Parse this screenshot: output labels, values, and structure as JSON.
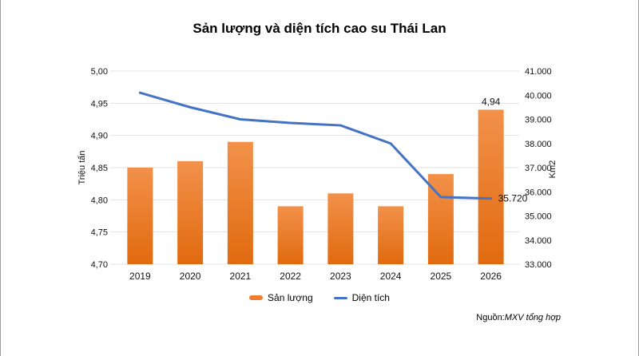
{
  "chart": {
    "title": "Sản lượng và diện tích cao su Thái Lan",
    "source": {
      "prefix": "Nguồn:",
      "text": "MXV tổng hợp"
    }
  },
  "colors": {
    "grid": "#E3E3E3",
    "text": "#111111",
    "frame_border": "#9B9B9B",
    "bar_orange": "#ED7D31",
    "line_blue": "#4472C4"
  },
  "chart_data": {
    "type": "combo-bar-line",
    "title": "Sản lượng và diện tích cao su Thái Lan",
    "categories": [
      "2019",
      "2020",
      "2021",
      "2022",
      "2023",
      "2024",
      "2025",
      "2026"
    ],
    "series": [
      {
        "name": "Sản lượng",
        "type": "bar",
        "axis": "left",
        "unit": "Triệu tấn",
        "values": [
          4.85,
          4.86,
          4.89,
          4.79,
          4.81,
          4.79,
          4.84,
          4.94
        ],
        "color": "#ED7D31",
        "gradient": [
          "#F2914A",
          "#E16A0F"
        ],
        "data_labels": [
          {
            "category": "2026",
            "text": "4,94"
          }
        ]
      },
      {
        "name": "Diện tích",
        "type": "line",
        "axis": "right",
        "unit": "Km2",
        "values": [
          40100,
          39500,
          39000,
          38850,
          38750,
          38000,
          35780,
          35720
        ],
        "color": "#4472C4",
        "data_labels": [
          {
            "category": "2026",
            "text": "35.720"
          }
        ]
      }
    ],
    "left_axis": {
      "label": "Triệu tấn",
      "min": 4.7,
      "max": 5.0,
      "ticks": [
        {
          "v": 5.0,
          "label": "5,00"
        },
        {
          "v": 4.95,
          "label": "4,95"
        },
        {
          "v": 4.9,
          "label": "4,90"
        },
        {
          "v": 4.85,
          "label": "4,85"
        },
        {
          "v": 4.8,
          "label": "4,80"
        },
        {
          "v": 4.75,
          "label": "4,75"
        },
        {
          "v": 4.7,
          "label": "4,70"
        }
      ]
    },
    "right_axis": {
      "label": "Km2",
      "min": 33000,
      "max": 41000,
      "ticks": [
        {
          "v": 41000,
          "label": "41.000"
        },
        {
          "v": 40000,
          "label": "40.000"
        },
        {
          "v": 39000,
          "label": "39.000"
        },
        {
          "v": 38000,
          "label": "38.000"
        },
        {
          "v": 37000,
          "label": "37.000"
        },
        {
          "v": 36000,
          "label": "36.000"
        },
        {
          "v": 35000,
          "label": "35.000"
        },
        {
          "v": 34000,
          "label": "34.000"
        },
        {
          "v": 33000,
          "label": "33.000"
        }
      ]
    },
    "grid": "horizontal-only",
    "legend_position": "bottom"
  }
}
